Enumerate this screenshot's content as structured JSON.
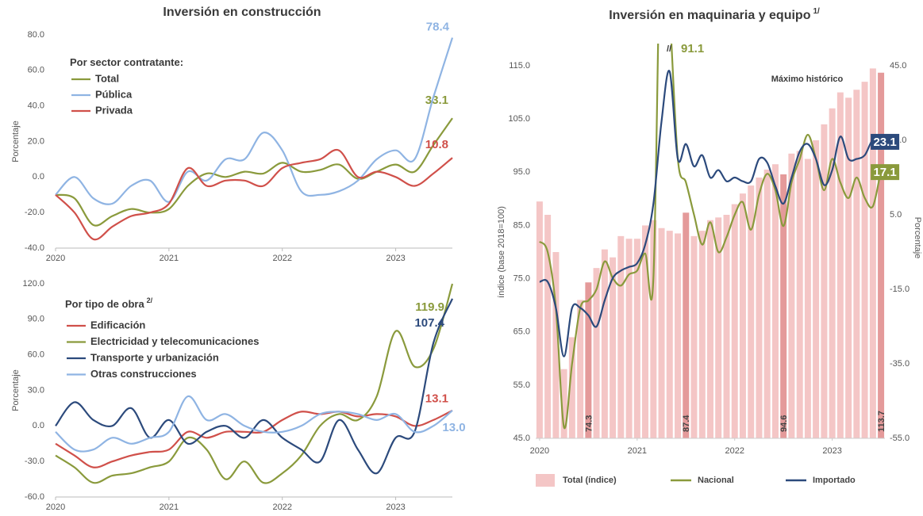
{
  "chart_data": [
    {
      "type": "line",
      "title": "Inversión en construcción",
      "subtitle": "Por sector contratante:",
      "ylabel": "Porcentaje",
      "x": [
        2020,
        2020.167,
        2020.333,
        2020.5,
        2020.667,
        2020.833,
        2021,
        2021.167,
        2021.333,
        2021.5,
        2021.667,
        2021.833,
        2022,
        2022.167,
        2022.333,
        2022.5,
        2022.667,
        2022.833,
        2023,
        2023.167,
        2023.333,
        2023.5
      ],
      "xlim": [
        2020,
        2023.5
      ],
      "xticks": [
        2020,
        2021,
        2022,
        2023
      ],
      "ylim": [
        -40,
        80
      ],
      "yticks": [
        {
          "value": -40,
          "label": "-40.0"
        },
        {
          "value": -20,
          "label": "-20.0"
        },
        {
          "value": 0,
          "label": "0.0"
        },
        {
          "value": 20,
          "label": "20.0"
        },
        {
          "value": 40,
          "label": "40.0"
        },
        {
          "value": 60,
          "label": "60.0"
        },
        {
          "value": 80,
          "label": "80.0"
        }
      ],
      "series": [
        {
          "name": "Total",
          "color": "#8a9a3c",
          "values": [
            -10,
            -12,
            -27,
            -22,
            -18,
            -20,
            -18,
            -5,
            2,
            0,
            3,
            2,
            8,
            3,
            4,
            7,
            -1,
            3,
            7,
            3,
            18,
            33.1
          ]
        },
        {
          "name": "Pública",
          "color": "#8fb4e3",
          "values": [
            -10,
            0,
            -12,
            -15,
            -5,
            -2,
            -14,
            3,
            -2,
            10,
            10,
            25,
            15,
            -8,
            -10,
            -8,
            -2,
            10,
            15,
            10,
            45,
            78.4
          ]
        },
        {
          "name": "Privada",
          "color": "#d0504a",
          "values": [
            -10,
            -20,
            -35,
            -28,
            -22,
            -20,
            -15,
            5,
            -5,
            -2,
            -2,
            -5,
            5,
            8,
            10,
            15,
            0,
            3,
            0,
            -5,
            2,
            10.8
          ]
        }
      ]
    },
    {
      "type": "line",
      "subtitle": "Por tipo de obra",
      "subtitle_note": "2/",
      "ylabel": "Porcentaje",
      "x": [
        2020,
        2020.167,
        2020.333,
        2020.5,
        2020.667,
        2020.833,
        2021,
        2021.167,
        2021.333,
        2021.5,
        2021.667,
        2021.833,
        2022,
        2022.167,
        2022.333,
        2022.5,
        2022.667,
        2022.833,
        2023,
        2023.167,
        2023.333,
        2023.5
      ],
      "xlim": [
        2020,
        2023.5
      ],
      "xticks": [
        2020,
        2021,
        2022,
        2023
      ],
      "ylim": [
        -60,
        120
      ],
      "yticks": [
        {
          "value": -60,
          "label": "-60.0"
        },
        {
          "value": -30,
          "label": "-30.0"
        },
        {
          "value": 0,
          "label": "0.0"
        },
        {
          "value": 30,
          "label": "30.0"
        },
        {
          "value": 60,
          "label": "60.0"
        },
        {
          "value": 90,
          "label": "90.0"
        },
        {
          "value": 120,
          "label": "120.0"
        }
      ],
      "series": [
        {
          "name": "Edificación",
          "color": "#d0504a",
          "values": [
            -15,
            -25,
            -35,
            -30,
            -25,
            -22,
            -20,
            -5,
            -10,
            -5,
            -5,
            -5,
            5,
            12,
            10,
            12,
            8,
            10,
            8,
            0,
            5,
            13.1
          ]
        },
        {
          "name": "Electricidad y telecomunicaciones",
          "color": "#8a9a3c",
          "values": [
            -25,
            -35,
            -48,
            -42,
            -40,
            -35,
            -30,
            -10,
            -20,
            -45,
            -30,
            -48,
            -40,
            -25,
            0,
            10,
            5,
            25,
            80,
            50,
            65,
            119.9
          ]
        },
        {
          "name": "Transporte y urbanización",
          "color": "#2c4a7c",
          "values": [
            0,
            20,
            5,
            0,
            15,
            -10,
            5,
            -15,
            -5,
            0,
            -10,
            5,
            -10,
            -20,
            -30,
            5,
            -20,
            -40,
            -10,
            -5,
            70,
            107.4
          ]
        },
        {
          "name": "Otras construcciones",
          "color": "#8fb4e3",
          "values": [
            -5,
            -20,
            -20,
            -10,
            -15,
            -10,
            -5,
            25,
            5,
            10,
            0,
            -5,
            -5,
            0,
            10,
            12,
            10,
            5,
            10,
            -5,
            0,
            13
          ],
          "value_labels": [
            null,
            null,
            null,
            null,
            null,
            null,
            null,
            null,
            null,
            null,
            null,
            null,
            null,
            null,
            null,
            null,
            null,
            null,
            null,
            null,
            null,
            "13.0"
          ]
        }
      ]
    },
    {
      "type": "combo",
      "title": "Inversión en maquinaria y equipo",
      "title_note": "1/",
      "ylabel": "índice (base 2018=100)",
      "y2label": "Porcentaje",
      "annotations": [
        "Máximo histórico",
        "//"
      ],
      "x": [
        2020,
        2020.083,
        2020.167,
        2020.25,
        2020.333,
        2020.417,
        2020.5,
        2020.583,
        2020.667,
        2020.75,
        2020.833,
        2020.917,
        2021,
        2021.083,
        2021.167,
        2021.25,
        2021.333,
        2021.417,
        2021.5,
        2021.583,
        2021.667,
        2021.75,
        2021.833,
        2021.917,
        2022,
        2022.083,
        2022.167,
        2022.25,
        2022.333,
        2022.417,
        2022.5,
        2022.583,
        2022.667,
        2022.75,
        2022.833,
        2022.917,
        2023,
        2023.083,
        2023.167,
        2023.25,
        2023.333,
        2023.417,
        2023.5
      ],
      "xlim": [
        2019.96,
        2023.54
      ],
      "xticks": [
        2020,
        2021,
        2022,
        2023
      ],
      "ylim": [
        45,
        115
      ],
      "yticks": [
        {
          "value": 45,
          "label": "45.0"
        },
        {
          "value": 55,
          "label": "55.0"
        },
        {
          "value": 65,
          "label": "65.0"
        },
        {
          "value": 75,
          "label": "75.0"
        },
        {
          "value": 85,
          "label": "85.0"
        },
        {
          "value": 95,
          "label": "95.0"
        },
        {
          "value": 105,
          "label": "105.0"
        },
        {
          "value": 115,
          "label": "115.0"
        }
      ],
      "y2lim": [
        -55,
        45
      ],
      "y2ticks": [
        {
          "value": -55,
          "label": "-55.0"
        },
        {
          "value": -35,
          "label": "-35.0"
        },
        {
          "value": -15,
          "label": "-15.0"
        },
        {
          "value": 5,
          "label": "5.0"
        },
        {
          "value": 25,
          "label": "25.0"
        },
        {
          "value": 45,
          "label": "45.0"
        }
      ],
      "label_indices": [
        6,
        18,
        30,
        42
      ],
      "series": [
        {
          "name": "Total (índice)",
          "color": "#f4c6c6",
          "highlight_color": "#e49a9a",
          "values": [
            89.5,
            87,
            80,
            58,
            64,
            71,
            74.3,
            77,
            80.5,
            79,
            83,
            82.5,
            82.5,
            85,
            86,
            84.5,
            84,
            83.5,
            87.4,
            83,
            84,
            86,
            86.5,
            87,
            89,
            91,
            92.5,
            94,
            95.5,
            96.5,
            94.6,
            98.5,
            99,
            97.5,
            101,
            104,
            107,
            110,
            109,
            110.5,
            112,
            114.5,
            113.7
          ]
        },
        {
          "name": "Nacional",
          "color": "#8a9a3c",
          "axis": "y2",
          "values": [
            -2.2,
            -5,
            -20,
            -52,
            -35,
            -20,
            -18,
            -15,
            -7.5,
            -12,
            -14,
            -11,
            -10,
            -5.4,
            -12,
            91.1,
            60,
            20,
            13.7,
            5,
            -3,
            3,
            -5,
            -1,
            5,
            8.4,
            1,
            10.5,
            16,
            11.6,
            2,
            13.7,
            20,
            26.5,
            20,
            11.6,
            20,
            13.7,
            9.5,
            15,
            9.5,
            7.3,
            17.1
          ]
        },
        {
          "name": "Importado",
          "color": "#2c4a7c",
          "axis": "y2",
          "values": [
            -13,
            -13,
            -20,
            -33,
            -20,
            -20,
            -22,
            -25,
            -18,
            -12,
            -10,
            -9,
            -8,
            -3,
            8,
            30,
            43.5,
            20,
            24,
            18,
            21,
            15,
            17,
            14,
            15,
            14,
            14,
            20,
            19,
            12.7,
            8,
            15,
            22,
            24,
            20,
            13,
            17,
            26,
            20,
            20,
            21,
            25,
            23.1
          ]
        }
      ]
    }
  ]
}
